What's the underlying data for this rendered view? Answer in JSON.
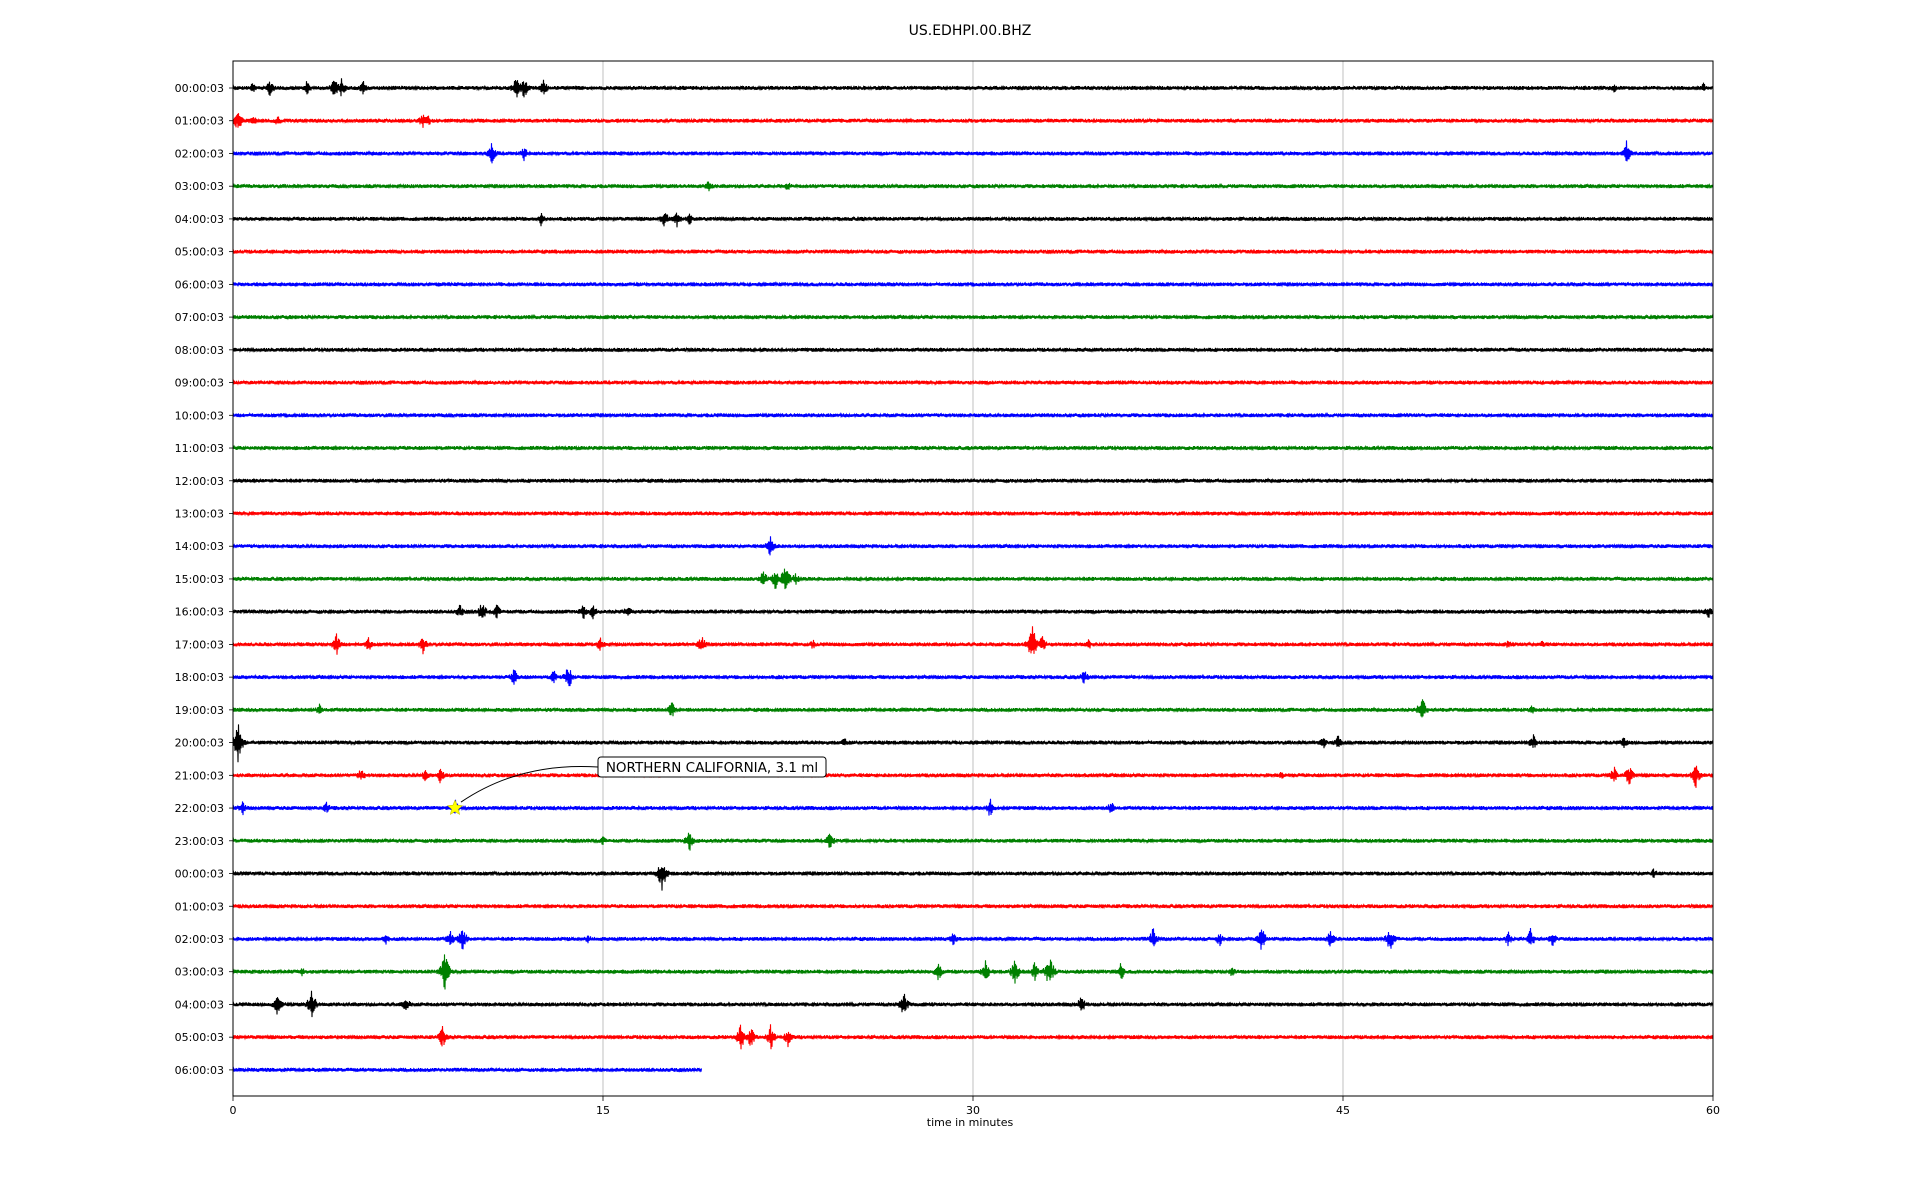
{
  "chart_data": {
    "type": "line",
    "subtype": "seismogram-helicorder",
    "title": "US.EDHPI.00.BHZ",
    "xlabel": "time in minutes",
    "ylabel": "",
    "xlim": [
      0,
      60
    ],
    "x_ticks": [
      0,
      15,
      30,
      45,
      60
    ],
    "grid_x": true,
    "grid_y": false,
    "legend": "none",
    "colors": [
      "#000000",
      "#ff0000",
      "#0000ff",
      "#008000"
    ],
    "traces": [
      {
        "label": "00:00:03",
        "end_minute": 60,
        "events": [
          [
            0.8,
            6
          ],
          [
            1.5,
            10
          ],
          [
            3.0,
            8
          ],
          [
            4.1,
            12
          ],
          [
            4.4,
            10
          ],
          [
            5.3,
            9
          ],
          [
            11.5,
            14
          ],
          [
            11.8,
            12
          ],
          [
            12.6,
            9
          ],
          [
            56.0,
            5
          ],
          [
            59.6,
            6
          ]
        ]
      },
      {
        "label": "01:00:03",
        "end_minute": 60,
        "events": [
          [
            0.2,
            12
          ],
          [
            0.8,
            7
          ],
          [
            1.8,
            6
          ],
          [
            7.7,
            9
          ],
          [
            7.9,
            7
          ]
        ]
      },
      {
        "label": "02:00:03",
        "end_minute": 60,
        "events": [
          [
            10.5,
            12
          ],
          [
            11.8,
            8
          ],
          [
            56.5,
            14
          ]
        ]
      },
      {
        "label": "03:00:03",
        "end_minute": 60,
        "events": [
          [
            19.3,
            7
          ],
          [
            22.5,
            6
          ]
        ]
      },
      {
        "label": "04:00:03",
        "end_minute": 60,
        "events": [
          [
            12.5,
            8
          ],
          [
            17.5,
            10
          ],
          [
            18.0,
            9
          ],
          [
            18.5,
            7
          ]
        ]
      },
      {
        "label": "05:00:03",
        "end_minute": 60,
        "events": []
      },
      {
        "label": "06:00:03",
        "end_minute": 60,
        "events": []
      },
      {
        "label": "07:00:03",
        "end_minute": 60,
        "events": []
      },
      {
        "label": "08:00:03",
        "end_minute": 60,
        "events": []
      },
      {
        "label": "09:00:03",
        "end_minute": 60,
        "events": []
      },
      {
        "label": "10:00:03",
        "end_minute": 60,
        "events": []
      },
      {
        "label": "11:00:03",
        "end_minute": 60,
        "events": []
      },
      {
        "label": "12:00:03",
        "end_minute": 60,
        "events": []
      },
      {
        "label": "13:00:03",
        "end_minute": 60,
        "events": []
      },
      {
        "label": "14:00:03",
        "end_minute": 60,
        "events": [
          [
            21.8,
            14
          ]
        ]
      },
      {
        "label": "15:00:03",
        "end_minute": 60,
        "events": [
          [
            21.5,
            10
          ],
          [
            22.0,
            12
          ],
          [
            22.4,
            18
          ],
          [
            22.8,
            8
          ]
        ]
      },
      {
        "label": "16:00:03",
        "end_minute": 60,
        "events": [
          [
            9.2,
            8
          ],
          [
            10.1,
            12
          ],
          [
            10.7,
            8
          ],
          [
            14.2,
            9
          ],
          [
            14.6,
            8
          ],
          [
            16.0,
            8
          ],
          [
            59.8,
            8
          ]
        ]
      },
      {
        "label": "17:00:03",
        "end_minute": 60,
        "events": [
          [
            4.2,
            12
          ],
          [
            5.5,
            8
          ],
          [
            7.7,
            10
          ],
          [
            14.9,
            9
          ],
          [
            19.0,
            10
          ],
          [
            23.5,
            6
          ],
          [
            32.4,
            22
          ],
          [
            32.8,
            10
          ],
          [
            34.7,
            6
          ],
          [
            51.7,
            5
          ],
          [
            53.1,
            5
          ]
        ]
      },
      {
        "label": "18:00:03",
        "end_minute": 60,
        "events": [
          [
            11.4,
            10
          ],
          [
            13.0,
            8
          ],
          [
            13.6,
            14
          ],
          [
            34.5,
            9
          ]
        ]
      },
      {
        "label": "19:00:03",
        "end_minute": 60,
        "events": [
          [
            3.5,
            7
          ],
          [
            17.8,
            10
          ],
          [
            48.2,
            16
          ],
          [
            52.7,
            7
          ]
        ]
      },
      {
        "label": "20:00:03",
        "end_minute": 60,
        "events": [
          [
            0.2,
            24
          ],
          [
            24.8,
            6
          ],
          [
            44.2,
            7
          ],
          [
            44.8,
            8
          ],
          [
            52.7,
            10
          ],
          [
            56.4,
            7
          ]
        ]
      },
      {
        "label": "21:00:03",
        "end_minute": 60,
        "events": [
          [
            5.2,
            8
          ],
          [
            7.8,
            7
          ],
          [
            8.4,
            9
          ],
          [
            42.5,
            5
          ],
          [
            56.0,
            10
          ],
          [
            56.6,
            12
          ],
          [
            59.3,
            14
          ]
        ]
      },
      {
        "label": "22:00:03",
        "end_minute": 60,
        "events": [
          [
            0.4,
            8
          ],
          [
            3.8,
            7
          ],
          [
            9.0,
            10
          ],
          [
            30.7,
            11
          ],
          [
            35.6,
            8
          ]
        ]
      },
      {
        "label": "23:00:03",
        "end_minute": 60,
        "events": [
          [
            15.0,
            5
          ],
          [
            18.5,
            12
          ],
          [
            24.2,
            10
          ]
        ]
      },
      {
        "label": "00:00:03",
        "end_minute": 60,
        "events": [
          [
            17.4,
            20
          ],
          [
            57.6,
            6
          ]
        ]
      },
      {
        "label": "01:00:03",
        "end_minute": 60,
        "events": []
      },
      {
        "label": "02:00:03",
        "end_minute": 60,
        "events": [
          [
            6.2,
            6
          ],
          [
            8.8,
            10
          ],
          [
            9.3,
            14
          ],
          [
            14.4,
            6
          ],
          [
            29.2,
            7
          ],
          [
            37.3,
            12
          ],
          [
            40.0,
            8
          ],
          [
            41.7,
            14
          ],
          [
            44.5,
            10
          ],
          [
            46.9,
            14
          ],
          [
            51.7,
            8
          ],
          [
            52.6,
            12
          ],
          [
            53.5,
            8
          ]
        ]
      },
      {
        "label": "03:00:03",
        "end_minute": 60,
        "events": [
          [
            2.8,
            6
          ],
          [
            8.6,
            22
          ],
          [
            28.6,
            10
          ],
          [
            30.5,
            12
          ],
          [
            31.7,
            14
          ],
          [
            32.5,
            10
          ],
          [
            33.1,
            20
          ],
          [
            36.0,
            10
          ],
          [
            40.5,
            6
          ]
        ]
      },
      {
        "label": "04:00:03",
        "end_minute": 60,
        "events": [
          [
            1.8,
            12
          ],
          [
            3.2,
            16
          ],
          [
            7.0,
            10
          ],
          [
            27.2,
            14
          ],
          [
            34.4,
            10
          ]
        ]
      },
      {
        "label": "05:00:03",
        "end_minute": 60,
        "events": [
          [
            8.5,
            12
          ],
          [
            20.6,
            16
          ],
          [
            21.0,
            12
          ],
          [
            21.8,
            14
          ],
          [
            22.5,
            10
          ]
        ]
      },
      {
        "label": "06:00:03",
        "end_minute": 19,
        "events": []
      }
    ],
    "annotation": {
      "text": "NORTHERN CALIFORNIA, 3.1 ml",
      "trace_index": 22,
      "minute": 9.0,
      "marker": "star",
      "marker_color": "#ffff00"
    }
  }
}
